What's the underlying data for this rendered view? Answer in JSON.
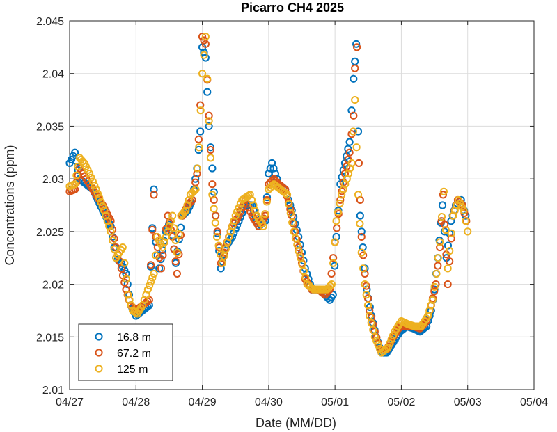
{
  "chart_data": {
    "type": "scatter",
    "title": "Picarro CH4 2025",
    "xlabel": "Date (MM/DD)",
    "ylabel": "Concentrations (ppm)",
    "x_tick_labels": [
      "04/27",
      "04/28",
      "04/29",
      "04/30",
      "05/01",
      "05/02",
      "05/03",
      "05/04"
    ],
    "y_tick_labels": [
      "2.01",
      "2.015",
      "2.02",
      "2.025",
      "2.03",
      "2.035",
      "2.04",
      "2.045"
    ],
    "xlim_days": [
      0,
      7
    ],
    "ylim": [
      2.01,
      2.045
    ],
    "grid": true,
    "legend_position": "bottom-left",
    "marker": "open-circle",
    "series": [
      {
        "name": "16.8 m",
        "color": "#0072BD",
        "points": [
          [
            0.0,
            2.0315
          ],
          [
            0.08,
            2.0325
          ],
          [
            0.15,
            2.03
          ],
          [
            0.25,
            2.0295
          ],
          [
            0.35,
            2.029
          ],
          [
            0.5,
            2.027
          ],
          [
            0.62,
            2.0255
          ],
          [
            0.7,
            2.0225
          ],
          [
            0.78,
            2.022
          ],
          [
            0.85,
            2.021
          ],
          [
            0.92,
            2.018
          ],
          [
            1.0,
            2.017
          ],
          [
            1.1,
            2.0175
          ],
          [
            1.2,
            2.018
          ],
          [
            1.27,
            2.029
          ],
          [
            1.3,
            2.024
          ],
          [
            1.35,
            2.0215
          ],
          [
            1.45,
            2.025
          ],
          [
            1.52,
            2.026
          ],
          [
            1.6,
            2.022
          ],
          [
            1.7,
            2.0265
          ],
          [
            1.78,
            2.027
          ],
          [
            1.85,
            2.028
          ],
          [
            1.92,
            2.031
          ],
          [
            1.97,
            2.0345
          ],
          [
            2.0,
            2.0425
          ],
          [
            2.05,
            2.0415
          ],
          [
            2.1,
            2.035
          ],
          [
            2.15,
            2.031
          ],
          [
            2.2,
            2.0265
          ],
          [
            2.28,
            2.0215
          ],
          [
            2.35,
            2.0235
          ],
          [
            2.45,
            2.0245
          ],
          [
            2.55,
            2.026
          ],
          [
            2.65,
            2.0275
          ],
          [
            2.75,
            2.0275
          ],
          [
            2.85,
            2.0255
          ],
          [
            2.95,
            2.026
          ],
          [
            3.0,
            2.0305
          ],
          [
            3.05,
            2.0315
          ],
          [
            3.15,
            2.0295
          ],
          [
            3.25,
            2.029
          ],
          [
            3.35,
            2.027
          ],
          [
            3.45,
            2.0245
          ],
          [
            3.55,
            2.0215
          ],
          [
            3.65,
            2.0195
          ],
          [
            3.75,
            2.0195
          ],
          [
            3.85,
            2.019
          ],
          [
            3.92,
            2.0185
          ],
          [
            3.97,
            2.019
          ],
          [
            4.02,
            2.0245
          ],
          [
            4.08,
            2.0295
          ],
          [
            4.15,
            2.0315
          ],
          [
            4.22,
            2.0335
          ],
          [
            4.28,
            2.0395
          ],
          [
            4.32,
            2.0428
          ],
          [
            4.35,
            2.0345
          ],
          [
            4.38,
            2.0265
          ],
          [
            4.42,
            2.0235
          ],
          [
            4.48,
            2.0195
          ],
          [
            4.55,
            2.017
          ],
          [
            4.62,
            2.015
          ],
          [
            4.7,
            2.0135
          ],
          [
            4.78,
            2.0135
          ],
          [
            4.88,
            2.0145
          ],
          [
            4.98,
            2.0155
          ],
          [
            5.08,
            2.016
          ],
          [
            5.18,
            2.0158
          ],
          [
            5.28,
            2.0155
          ],
          [
            5.38,
            2.016
          ],
          [
            5.45,
            2.0175
          ],
          [
            5.5,
            2.0195
          ],
          [
            5.55,
            2.0225
          ],
          [
            5.62,
            2.0275
          ],
          [
            5.68,
            2.0225
          ],
          [
            5.75,
            2.026
          ],
          [
            5.82,
            2.0275
          ],
          [
            5.9,
            2.028
          ],
          [
            5.97,
            2.0265
          ]
        ]
      },
      {
        "name": "67.2 m",
        "color": "#D95319",
        "points": [
          [
            0.0,
            2.0288
          ],
          [
            0.08,
            2.029
          ],
          [
            0.15,
            2.031
          ],
          [
            0.25,
            2.03
          ],
          [
            0.35,
            2.029
          ],
          [
            0.5,
            2.0275
          ],
          [
            0.62,
            2.026
          ],
          [
            0.7,
            2.0235
          ],
          [
            0.78,
            2.0215
          ],
          [
            0.85,
            2.0195
          ],
          [
            0.92,
            2.018
          ],
          [
            1.0,
            2.0175
          ],
          [
            1.1,
            2.018
          ],
          [
            1.2,
            2.0185
          ],
          [
            1.27,
            2.0285
          ],
          [
            1.3,
            2.0245
          ],
          [
            1.38,
            2.0215
          ],
          [
            1.48,
            2.0265
          ],
          [
            1.55,
            2.0245
          ],
          [
            1.62,
            2.021
          ],
          [
            1.7,
            2.0265
          ],
          [
            1.78,
            2.0275
          ],
          [
            1.85,
            2.028
          ],
          [
            1.92,
            2.0305
          ],
          [
            1.97,
            2.037
          ],
          [
            2.0,
            2.0435
          ],
          [
            2.05,
            2.0428
          ],
          [
            2.1,
            2.036
          ],
          [
            2.15,
            2.0295
          ],
          [
            2.2,
            2.0265
          ],
          [
            2.28,
            2.022
          ],
          [
            2.35,
            2.0235
          ],
          [
            2.45,
            2.0255
          ],
          [
            2.55,
            2.0265
          ],
          [
            2.65,
            2.028
          ],
          [
            2.75,
            2.0265
          ],
          [
            2.85,
            2.0255
          ],
          [
            2.95,
            2.0265
          ],
          [
            3.0,
            2.0295
          ],
          [
            3.08,
            2.03
          ],
          [
            3.15,
            2.0295
          ],
          [
            3.25,
            2.029
          ],
          [
            3.35,
            2.0265
          ],
          [
            3.45,
            2.0235
          ],
          [
            3.55,
            2.0205
          ],
          [
            3.65,
            2.0195
          ],
          [
            3.75,
            2.0195
          ],
          [
            3.85,
            2.019
          ],
          [
            3.92,
            2.0195
          ],
          [
            4.0,
            2.024
          ],
          [
            4.08,
            2.028
          ],
          [
            4.15,
            2.0305
          ],
          [
            4.22,
            2.0325
          ],
          [
            4.28,
            2.036
          ],
          [
            4.3,
            2.0405
          ],
          [
            4.33,
            2.0425
          ],
          [
            4.36,
            2.0315
          ],
          [
            4.4,
            2.0245
          ],
          [
            4.45,
            2.021
          ],
          [
            4.52,
            2.0175
          ],
          [
            4.6,
            2.0155
          ],
          [
            4.68,
            2.0138
          ],
          [
            4.78,
            2.0138
          ],
          [
            4.88,
            2.015
          ],
          [
            4.98,
            2.016
          ],
          [
            5.08,
            2.016
          ],
          [
            5.18,
            2.016
          ],
          [
            5.28,
            2.0158
          ],
          [
            5.38,
            2.0165
          ],
          [
            5.45,
            2.018
          ],
          [
            5.52,
            2.02
          ],
          [
            5.58,
            2.0235
          ],
          [
            5.63,
            2.0285
          ],
          [
            5.7,
            2.02
          ],
          [
            5.78,
            2.0265
          ],
          [
            5.85,
            2.028
          ],
          [
            5.92,
            2.0275
          ],
          [
            5.98,
            2.026
          ]
        ]
      },
      {
        "name": "125 m",
        "color": "#EDB120",
        "points": [
          [
            0.0,
            2.0293
          ],
          [
            0.08,
            2.0295
          ],
          [
            0.15,
            2.032
          ],
          [
            0.22,
            2.0315
          ],
          [
            0.3,
            2.0305
          ],
          [
            0.4,
            2.029
          ],
          [
            0.52,
            2.027
          ],
          [
            0.62,
            2.025
          ],
          [
            0.7,
            2.0225
          ],
          [
            0.8,
            2.0235
          ],
          [
            0.88,
            2.019
          ],
          [
            0.95,
            2.0175
          ],
          [
            1.02,
            2.0172
          ],
          [
            1.1,
            2.018
          ],
          [
            1.18,
            2.0195
          ],
          [
            1.27,
            2.021
          ],
          [
            1.32,
            2.0245
          ],
          [
            1.4,
            2.0235
          ],
          [
            1.48,
            2.025
          ],
          [
            1.55,
            2.0265
          ],
          [
            1.62,
            2.023
          ],
          [
            1.68,
            2.0265
          ],
          [
            1.75,
            2.027
          ],
          [
            1.82,
            2.0285
          ],
          [
            1.9,
            2.029
          ],
          [
            1.95,
            2.033
          ],
          [
            2.0,
            2.04
          ],
          [
            2.05,
            2.0435
          ],
          [
            2.1,
            2.0355
          ],
          [
            2.15,
            2.0285
          ],
          [
            2.22,
            2.0245
          ],
          [
            2.3,
            2.022
          ],
          [
            2.38,
            2.024
          ],
          [
            2.5,
            2.0265
          ],
          [
            2.6,
            2.028
          ],
          [
            2.72,
            2.0285
          ],
          [
            2.82,
            2.0265
          ],
          [
            2.92,
            2.0255
          ],
          [
            3.0,
            2.029
          ],
          [
            3.08,
            2.0295
          ],
          [
            3.18,
            2.029
          ],
          [
            3.28,
            2.0285
          ],
          [
            3.38,
            2.025
          ],
          [
            3.48,
            2.0225
          ],
          [
            3.58,
            2.02
          ],
          [
            3.68,
            2.0195
          ],
          [
            3.78,
            2.0195
          ],
          [
            3.88,
            2.0195
          ],
          [
            3.95,
            2.02
          ],
          [
            4.02,
            2.026
          ],
          [
            4.1,
            2.0285
          ],
          [
            4.18,
            2.03
          ],
          [
            4.25,
            2.0315
          ],
          [
            4.3,
            2.0375
          ],
          [
            4.35,
            2.0285
          ],
          [
            4.4,
            2.023
          ],
          [
            4.45,
            2.02
          ],
          [
            4.52,
            2.017
          ],
          [
            4.6,
            2.015
          ],
          [
            4.7,
            2.0135
          ],
          [
            4.8,
            2.014
          ],
          [
            4.9,
            2.0155
          ],
          [
            5.0,
            2.0165
          ],
          [
            5.1,
            2.0162
          ],
          [
            5.2,
            2.016
          ],
          [
            5.3,
            2.016
          ],
          [
            5.4,
            2.017
          ],
          [
            5.47,
            2.0185
          ],
          [
            5.53,
            2.021
          ],
          [
            5.58,
            2.024
          ],
          [
            5.64,
            2.0288
          ],
          [
            5.7,
            2.0215
          ],
          [
            5.78,
            2.0265
          ],
          [
            5.86,
            2.028
          ],
          [
            5.94,
            2.027
          ],
          [
            6.0,
            2.025
          ]
        ]
      }
    ]
  }
}
